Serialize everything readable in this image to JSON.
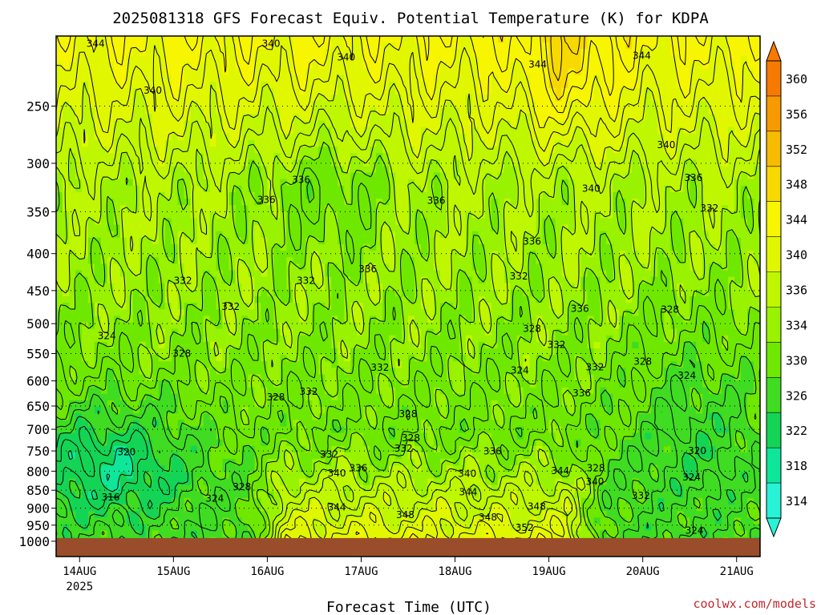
{
  "chart_data": {
    "type": "heatmap",
    "title": "2025081318 GFS Forecast Equiv. Potential Temperature (K) for KDPA",
    "xlabel": "Forecast Time (UTC)",
    "ylabel": "",
    "credit": "coolwx.com/models",
    "x_ticks": [
      {
        "label": "14AUG",
        "sub": "2025",
        "day": 14
      },
      {
        "label": "15AUG",
        "sub": "",
        "day": 15
      },
      {
        "label": "16AUG",
        "sub": "",
        "day": 16
      },
      {
        "label": "17AUG",
        "sub": "",
        "day": 17
      },
      {
        "label": "18AUG",
        "sub": "",
        "day": 18
      },
      {
        "label": "19AUG",
        "sub": "",
        "day": 19
      },
      {
        "label": "20AUG",
        "sub": "",
        "day": 20
      },
      {
        "label": "21AUG",
        "sub": "",
        "day": 21
      }
    ],
    "x_range_days": [
      13.75,
      21.25
    ],
    "y_axis": "pressure (hPa), log scale, inverted",
    "y_range_hpa": [
      200,
      1050
    ],
    "y_ticks": [
      250,
      300,
      350,
      400,
      450,
      500,
      550,
      600,
      650,
      700,
      750,
      800,
      850,
      900,
      950,
      1000
    ],
    "ground_level_hpa": 990,
    "colorbar": {
      "levels": [
        360,
        356,
        352,
        348,
        344,
        340,
        336,
        334,
        330,
        326,
        322,
        318,
        314
      ],
      "colors": [
        "#f77a00",
        "#f79a00",
        "#f7bb00",
        "#f7d900",
        "#f7f500",
        "#e1f700",
        "#bef700",
        "#98f200",
        "#6fe800",
        "#3fdc22",
        "#14d455",
        "#0ee699",
        "#28f3d7"
      ],
      "ground_color": "#9a4d2b"
    },
    "contour_labels": [
      {
        "v": "344",
        "day": 14.17,
        "p": 205
      },
      {
        "v": "340",
        "day": 16.04,
        "p": 205
      },
      {
        "v": "340",
        "day": 16.84,
        "p": 214
      },
      {
        "v": "344",
        "day": 18.88,
        "p": 219
      },
      {
        "v": "344",
        "day": 19.99,
        "p": 213
      },
      {
        "v": "340",
        "day": 14.78,
        "p": 238
      },
      {
        "v": "340",
        "day": 20.25,
        "p": 283
      },
      {
        "v": "336",
        "day": 20.54,
        "p": 314
      },
      {
        "v": "340",
        "day": 19.45,
        "p": 325
      },
      {
        "v": "336",
        "day": 16.36,
        "p": 316
      },
      {
        "v": "336",
        "day": 15.99,
        "p": 337
      },
      {
        "v": "336",
        "day": 17.8,
        "p": 338
      },
      {
        "v": "332",
        "day": 20.71,
        "p": 346
      },
      {
        "v": "336",
        "day": 18.82,
        "p": 385
      },
      {
        "v": "336",
        "day": 17.07,
        "p": 420
      },
      {
        "v": "332",
        "day": 15.1,
        "p": 436
      },
      {
        "v": "332",
        "day": 16.41,
        "p": 436
      },
      {
        "v": "332",
        "day": 18.68,
        "p": 430
      },
      {
        "v": "332",
        "day": 15.61,
        "p": 474
      },
      {
        "v": "336",
        "day": 19.33,
        "p": 477
      },
      {
        "v": "328",
        "day": 20.29,
        "p": 478
      },
      {
        "v": "324",
        "day": 14.29,
        "p": 520
      },
      {
        "v": "328",
        "day": 18.82,
        "p": 508
      },
      {
        "v": "332",
        "day": 19.08,
        "p": 535
      },
      {
        "v": "328",
        "day": 15.09,
        "p": 550
      },
      {
        "v": "332",
        "day": 17.2,
        "p": 575
      },
      {
        "v": "324",
        "day": 18.69,
        "p": 580
      },
      {
        "v": "332",
        "day": 19.49,
        "p": 574
      },
      {
        "v": "328",
        "day": 20.0,
        "p": 564
      },
      {
        "v": "324",
        "day": 20.47,
        "p": 590
      },
      {
        "v": "332",
        "day": 16.44,
        "p": 621
      },
      {
        "v": "328",
        "day": 16.09,
        "p": 632
      },
      {
        "v": "336",
        "day": 19.35,
        "p": 624
      },
      {
        "v": "328",
        "day": 17.5,
        "p": 667
      },
      {
        "v": "328",
        "day": 17.53,
        "p": 720
      },
      {
        "v": "332",
        "day": 17.45,
        "p": 744
      },
      {
        "v": "336",
        "day": 18.4,
        "p": 751
      },
      {
        "v": "320",
        "day": 14.5,
        "p": 753
      },
      {
        "v": "320",
        "day": 20.58,
        "p": 750
      },
      {
        "v": "332",
        "day": 16.66,
        "p": 758
      },
      {
        "v": "336",
        "day": 16.97,
        "p": 792
      },
      {
        "v": "340",
        "day": 16.74,
        "p": 805
      },
      {
        "v": "344",
        "day": 19.12,
        "p": 799
      },
      {
        "v": "328",
        "day": 19.5,
        "p": 792
      },
      {
        "v": "340",
        "day": 18.13,
        "p": 806
      },
      {
        "v": "324",
        "day": 20.52,
        "p": 816
      },
      {
        "v": "340",
        "day": 19.49,
        "p": 827
      },
      {
        "v": "328",
        "day": 15.73,
        "p": 841
      },
      {
        "v": "344",
        "day": 18.14,
        "p": 855
      },
      {
        "v": "332",
        "day": 19.98,
        "p": 865
      },
      {
        "v": "316",
        "day": 14.33,
        "p": 869
      },
      {
        "v": "324",
        "day": 15.44,
        "p": 873
      },
      {
        "v": "344",
        "day": 16.74,
        "p": 898
      },
      {
        "v": "348",
        "day": 17.47,
        "p": 920
      },
      {
        "v": "348",
        "day": 18.35,
        "p": 927
      },
      {
        "v": "348",
        "day": 18.87,
        "p": 895
      },
      {
        "v": "352",
        "day": 18.74,
        "p": 958
      },
      {
        "v": "324",
        "day": 20.55,
        "p": 966
      }
    ]
  }
}
